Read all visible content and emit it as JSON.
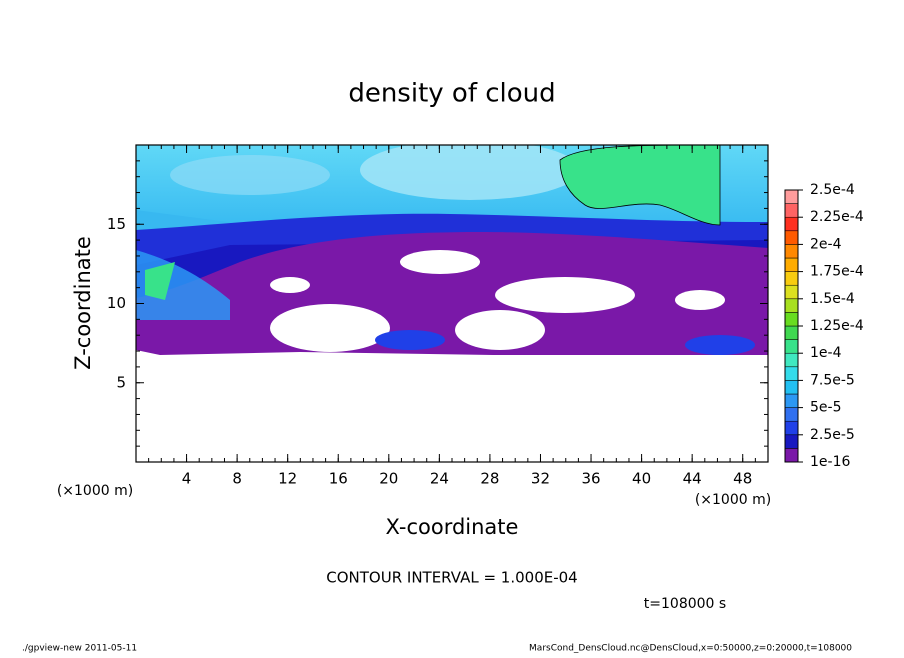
{
  "chart_data": {
    "type": "contour",
    "title": "density of cloud",
    "xlabel": "X-coordinate",
    "ylabel": "Z-coordinate",
    "x_unit": "(×1000 m)",
    "xlim": [
      0,
      50
    ],
    "xticks": [
      4,
      8,
      12,
      16,
      20,
      24,
      28,
      32,
      36,
      40,
      44,
      48
    ],
    "x_minor_step": 1,
    "ylim": [
      0,
      20
    ],
    "yticks": [
      5,
      10,
      15
    ],
    "y_minor_step": 1,
    "colorbar": {
      "ticks": [
        {
          "value": 1e-16,
          "label": "1e-16"
        },
        {
          "value": 2.5e-05,
          "label": "2.5e-5"
        },
        {
          "value": 5e-05,
          "label": "5e-5"
        },
        {
          "value": 7.5e-05,
          "label": "7.5e-5"
        },
        {
          "value": 0.0001,
          "label": "1e-4"
        },
        {
          "value": 0.000125,
          "label": "1.25e-4"
        },
        {
          "value": 0.00015,
          "label": "1.5e-4"
        },
        {
          "value": 0.000175,
          "label": "1.75e-4"
        },
        {
          "value": 0.0002,
          "label": "2e-4"
        },
        {
          "value": 0.000225,
          "label": "2.25e-4"
        },
        {
          "value": 0.00025,
          "label": "2.5e-4"
        }
      ],
      "colors": [
        "#7a18a8",
        "#1818c0",
        "#2040e8",
        "#3070f0",
        "#2c98f4",
        "#22c0f2",
        "#34dcea",
        "#40e8c0",
        "#38e28a",
        "#40d850",
        "#68dc20",
        "#a8e020",
        "#dce020",
        "#f8cc10",
        "#ffac00",
        "#ff8800",
        "#ff5a00",
        "#ff3020",
        "#ff6464",
        "#ff9c9c"
      ]
    },
    "annotations": [
      "CONTOUR INTERVAL = 1.000E-04",
      "t=108000 s"
    ],
    "footer_left": "./gpview-new  2011-05-11",
    "footer_right": "MarsCond_DensCloud.nc@DensCloud,x=0:50000,z=0:20000,t=108000"
  }
}
